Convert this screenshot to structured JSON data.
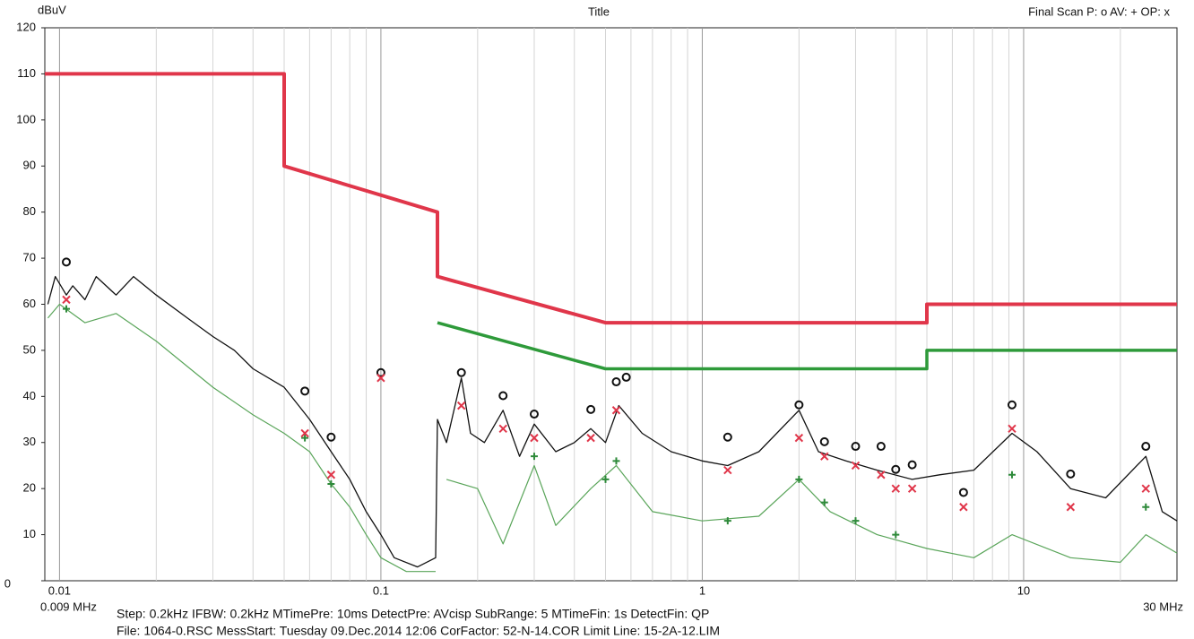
{
  "chart_data": {
    "type": "line",
    "title": "Title",
    "y_label": "dBuV",
    "legend_text": "Final Scan P: o  AV: +  OP: x",
    "x_start_label": "0.009 MHz",
    "x_end_label": "30 MHz",
    "footer": [
      "Step: 0.2kHz    IFBW: 0.2kHz    MTimePre: 10ms    DetectPre: AVcisp    SubRange:  5    MTimeFin:  1s    DetectFin: QP",
      "File: 1064-0.RSC      MessStart: Tuesday  09.Dec.2014   12:06      CorFactor: 52-N-14.COR     Limit Line: 15-2A-12.LIM"
    ],
    "log_x": true,
    "xlim": [
      0.009,
      30
    ],
    "xticks": [
      0.01,
      0.1,
      1,
      10
    ],
    "x_minor_grid": [
      0.02,
      0.03,
      0.04,
      0.05,
      0.06,
      0.07,
      0.08,
      0.09,
      0.2,
      0.3,
      0.4,
      0.5,
      0.6,
      0.7,
      0.8,
      0.9,
      2,
      3,
      4,
      5,
      6,
      7,
      8,
      9,
      20
    ],
    "ylim": [
      0,
      120
    ],
    "yticks": [
      0,
      10,
      20,
      30,
      40,
      50,
      60,
      70,
      80,
      90,
      100,
      110,
      120
    ],
    "series": [
      {
        "color": "#111111",
        "width": 1.3,
        "x": [
          0.0092,
          0.0097,
          0.0105,
          0.011,
          0.012,
          0.013,
          0.015,
          0.017,
          0.02,
          0.025,
          0.03,
          0.035,
          0.04,
          0.05,
          0.06,
          0.07,
          0.08,
          0.09,
          0.1,
          0.11,
          0.13,
          0.148,
          0.15,
          0.16,
          0.178,
          0.19,
          0.21,
          0.24,
          0.27,
          0.3,
          0.35,
          0.4,
          0.45,
          0.5,
          0.55,
          0.65,
          0.8,
          1.0,
          1.2,
          1.5,
          2.0,
          2.3,
          2.8,
          3.5,
          4.5,
          5.5,
          7,
          9.2,
          11,
          14,
          18,
          24,
          27,
          30
        ],
        "values": [
          60,
          66,
          62,
          64,
          61,
          66,
          62,
          66,
          62,
          57,
          53,
          50,
          46,
          42,
          35,
          28,
          22,
          15,
          10,
          5,
          3,
          5,
          35,
          30,
          44,
          32,
          30,
          37,
          27,
          34,
          28,
          30,
          33,
          30,
          38,
          32,
          28,
          26,
          25,
          28,
          37,
          28,
          26,
          24,
          22,
          23,
          24,
          32,
          28,
          20,
          18,
          27,
          15,
          13
        ]
      },
      {
        "color": "#5aa55a",
        "width": 1.2,
        "x": [
          0.0092,
          0.01,
          0.012,
          0.015,
          0.02,
          0.03,
          0.04,
          0.05,
          0.06,
          0.07,
          0.08,
          0.09,
          0.1,
          0.12,
          0.148,
          0.15,
          0.16,
          0.2,
          0.24,
          0.3,
          0.35,
          0.45,
          0.54,
          0.7,
          1,
          1.5,
          2.0,
          2.5,
          3.5,
          5,
          7,
          9.2,
          14,
          20,
          24,
          30
        ],
        "values": [
          57,
          60,
          56,
          58,
          52,
          42,
          36,
          32,
          28,
          21,
          16,
          10,
          5,
          2,
          2,
          null,
          22,
          20,
          8,
          25,
          12,
          20,
          25,
          15,
          13,
          14,
          22,
          15,
          10,
          7,
          5,
          10,
          5,
          4,
          10,
          6
        ]
      },
      {
        "color": "#e0364a",
        "width": 4,
        "x": [
          0.009,
          0.05,
          0.05,
          0.15,
          0.15,
          0.5,
          5,
          5,
          30
        ],
        "values": [
          110,
          110,
          90,
          80,
          66,
          56,
          56,
          60,
          60
        ]
      },
      {
        "color": "#2e9a3a",
        "width": 3.5,
        "x": [
          0.15,
          0.5,
          5,
          5,
          30
        ],
        "values": [
          56,
          46,
          46,
          50,
          50
        ]
      }
    ],
    "markers": [
      {
        "marker": "circle",
        "color": "#111111",
        "x": [
          0.0105,
          0.058,
          0.07,
          0.1,
          0.178,
          0.24,
          0.3,
          0.45,
          0.54,
          0.58,
          1.2,
          2.0,
          2.4,
          3.0,
          3.6,
          4.0,
          4.5,
          6.5,
          9.2,
          14,
          24
        ],
        "values": [
          68,
          40,
          30,
          44,
          44,
          39,
          35,
          36,
          42,
          43,
          30,
          37,
          29,
          28,
          28,
          23,
          24,
          18,
          37,
          22,
          28
        ]
      },
      {
        "marker": "plus",
        "color": "#2e8a3a",
        "x": [
          0.0105,
          0.058,
          0.07,
          0.3,
          0.5,
          0.54,
          1.2,
          2.0,
          2.4,
          3.0,
          4.0,
          9.2,
          24
        ],
        "values": [
          59,
          31,
          21,
          27,
          22,
          26,
          13,
          22,
          17,
          13,
          10,
          23,
          16
        ]
      },
      {
        "marker": "cross",
        "color": "#e0364a",
        "x": [
          0.0105,
          0.058,
          0.07,
          0.1,
          0.178,
          0.24,
          0.3,
          0.45,
          0.54,
          1.2,
          2.0,
          2.4,
          3.0,
          3.6,
          4.0,
          4.5,
          6.5,
          9.2,
          14,
          24
        ],
        "values": [
          61,
          32,
          23,
          44,
          38,
          33,
          31,
          31,
          37,
          24,
          31,
          27,
          25,
          23,
          20,
          20,
          16,
          33,
          16,
          20
        ]
      }
    ]
  }
}
